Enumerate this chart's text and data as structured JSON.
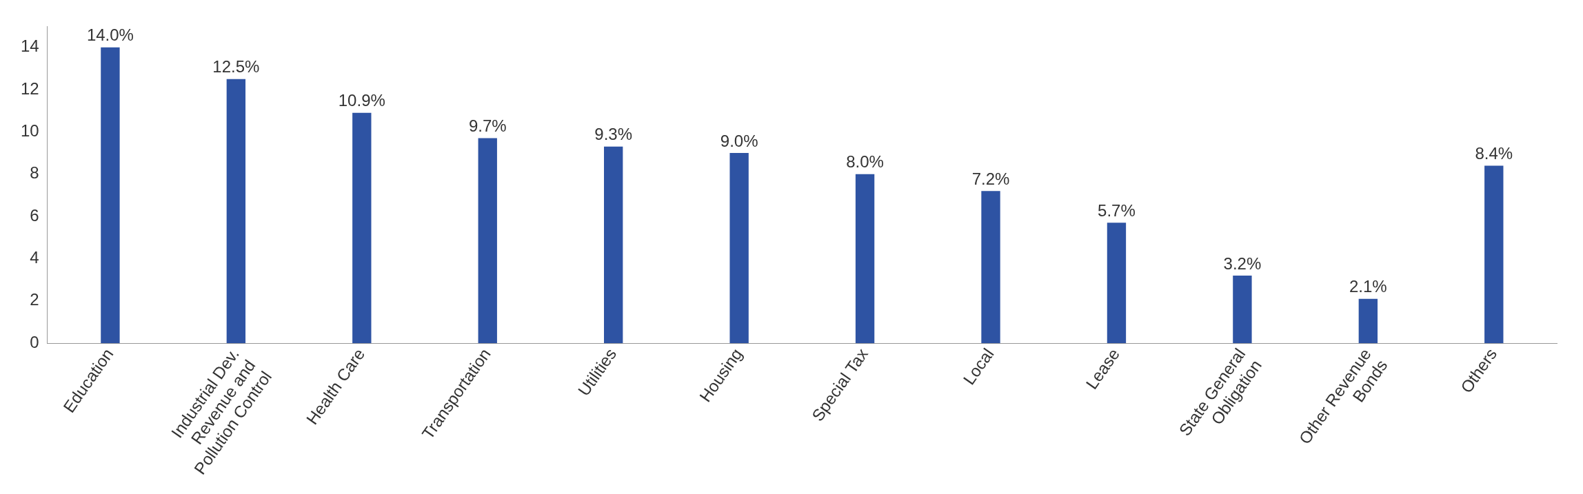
{
  "chart_data": {
    "type": "bar",
    "categories": [
      "Education",
      "Industrial Dev. Revenue and Pollution Control",
      "Health Care",
      "Transportation",
      "Utilities",
      "Housing",
      "Special Tax",
      "Local",
      "Lease",
      "State General Obligation",
      "Other Revenue Bonds",
      "Others"
    ],
    "values": [
      14.0,
      12.5,
      10.9,
      9.7,
      9.3,
      9.0,
      8.0,
      7.2,
      5.7,
      3.2,
      2.1,
      8.4
    ],
    "value_labels": [
      "14.0%",
      "12.5%",
      "10.9%",
      "9.7%",
      "9.3%",
      "9.0%",
      "8.0%",
      "7.2%",
      "5.7%",
      "3.2%",
      "2.1%",
      "8.4%"
    ],
    "color": "#2e53a3",
    "ylim": [
      0,
      15
    ],
    "yticks": [
      0,
      2,
      4,
      6,
      8,
      10,
      12,
      14
    ],
    "grid": false,
    "legend": false
  }
}
